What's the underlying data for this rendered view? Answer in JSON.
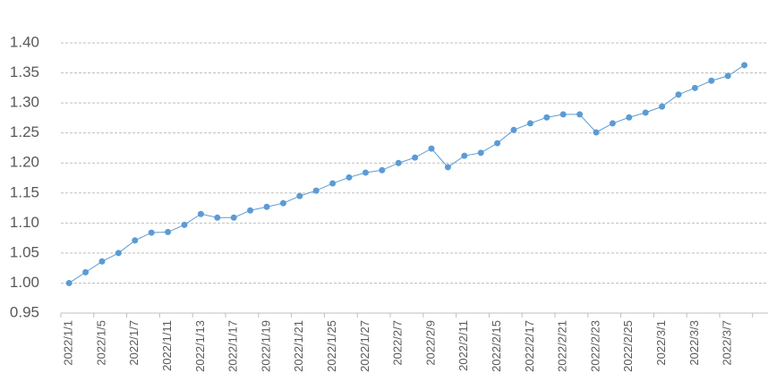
{
  "chart_data": {
    "type": "line",
    "categories": [
      "2022/1/1",
      null,
      "2022/1/5",
      null,
      "2022/1/7",
      null,
      "2022/1/11",
      null,
      "2022/1/13",
      null,
      "2022/1/17",
      null,
      "2022/1/19",
      null,
      "2022/1/21",
      null,
      "2022/1/25",
      null,
      "2022/1/27",
      null,
      "2022/2/7",
      null,
      "2022/2/9",
      null,
      "2022/2/11",
      null,
      "2022/2/15",
      null,
      "2022/2/17",
      null,
      "2022/2/21",
      null,
      "2022/2/23",
      null,
      "2022/2/25",
      null,
      "2022/3/1",
      null,
      "2022/3/3",
      null,
      "2022/3/7",
      null
    ],
    "series": [
      {
        "color": "#5b9bd5",
        "values": [
          1.0,
          1.018,
          1.036,
          1.05,
          1.071,
          1.084,
          1.085,
          1.097,
          1.115,
          1.109,
          1.109,
          1.121,
          1.127,
          1.133,
          1.145,
          1.154,
          1.166,
          1.176,
          1.184,
          1.188,
          1.2,
          1.209,
          1.224,
          1.193,
          1.212,
          1.217,
          1.233,
          1.255,
          1.266,
          1.276,
          1.281,
          1.281,
          1.251,
          1.266,
          1.276,
          1.284,
          1.294,
          1.314,
          1.325,
          1.337,
          1.345,
          1.363
        ]
      }
    ],
    "ylim": [
      0.95,
      1.4
    ],
    "yticks": [
      0.95,
      {
        "value": 1.0,
        "label": "1.00"
      },
      1.05,
      {
        "value": 1.1,
        "label": "1.10"
      },
      1.15,
      {
        "value": 1.2,
        "label": "1.20"
      },
      1.25,
      {
        "value": 1.3,
        "label": "1.30"
      },
      1.35,
      {
        "value": 1.4,
        "label": "1.40"
      }
    ],
    "grid": true
  }
}
